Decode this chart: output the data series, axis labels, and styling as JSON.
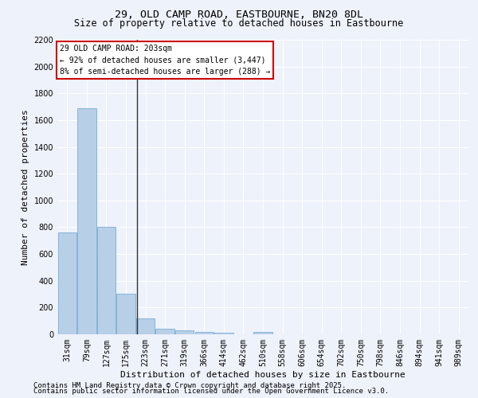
{
  "title1": "29, OLD CAMP ROAD, EASTBOURNE, BN20 8DL",
  "title2": "Size of property relative to detached houses in Eastbourne",
  "xlabel": "Distribution of detached houses by size in Eastbourne",
  "ylabel": "Number of detached properties",
  "categories": [
    "31sqm",
    "79sqm",
    "127sqm",
    "175sqm",
    "223sqm",
    "271sqm",
    "319sqm",
    "366sqm",
    "414sqm",
    "462sqm",
    "510sqm",
    "558sqm",
    "606sqm",
    "654sqm",
    "702sqm",
    "750sqm",
    "798sqm",
    "846sqm",
    "894sqm",
    "941sqm",
    "989sqm"
  ],
  "values": [
    760,
    1690,
    800,
    305,
    120,
    40,
    30,
    20,
    10,
    0,
    15,
    0,
    0,
    0,
    0,
    0,
    0,
    0,
    0,
    0,
    0
  ],
  "bar_color": "#b8cfe8",
  "bar_edge_color": "#7aadd4",
  "background_color": "#eef2fb",
  "grid_color": "#ffffff",
  "annotation_line1": "29 OLD CAMP ROAD: 203sqm",
  "annotation_line2": "← 92% of detached houses are smaller (3,447)",
  "annotation_line3": "8% of semi-detached houses are larger (288) →",
  "annotation_box_color": "#ffffff",
  "annotation_box_edge_color": "#cc0000",
  "vline_x": 3.58,
  "vline_color": "#333333",
  "ylim": [
    0,
    2200
  ],
  "yticks": [
    0,
    200,
    400,
    600,
    800,
    1000,
    1200,
    1400,
    1600,
    1800,
    2000,
    2200
  ],
  "footnote1": "Contains HM Land Registry data © Crown copyright and database right 2025.",
  "footnote2": "Contains public sector information licensed under the Open Government Licence v3.0.",
  "title1_fontsize": 9.5,
  "title2_fontsize": 8.5,
  "axis_label_fontsize": 8,
  "tick_fontsize": 7,
  "annotation_fontsize": 7,
  "footnote_fontsize": 6.5
}
